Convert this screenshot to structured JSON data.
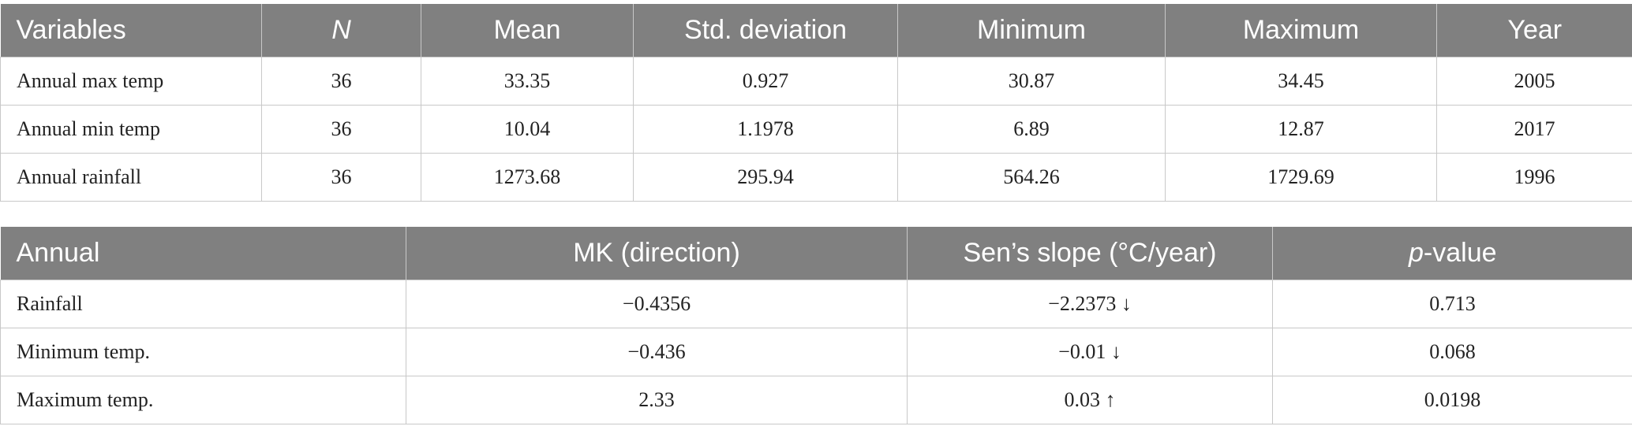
{
  "table1": {
    "header": [
      "Variables",
      "N",
      "Mean",
      "Std. deviation",
      "Minimum",
      "Maximum",
      "Year"
    ],
    "rows": [
      [
        "Annual max temp",
        "36",
        "33.35",
        "0.927",
        "30.87",
        "34.45",
        "2005"
      ],
      [
        "Annual min temp",
        "36",
        "10.04",
        "1.1978",
        "6.89",
        "12.87",
        "2017"
      ],
      [
        "Annual rainfall",
        "36",
        "1273.68",
        "295.94",
        "564.26",
        "1729.69",
        "1996"
      ]
    ]
  },
  "table2": {
    "header": [
      "Annual",
      "MK (direction)",
      "Sen’s slope (°C/year)",
      {
        "italic": "p",
        "rest": "-value"
      }
    ],
    "rows": [
      [
        "Rainfall",
        "−0.4356",
        "−2.2373 ↓",
        "0.713"
      ],
      [
        "Minimum temp.",
        "−0.436",
        "−0.01 ↓",
        "0.068"
      ],
      [
        "Maximum temp.",
        "2.33",
        "0.03 ↑",
        "0.0198"
      ]
    ]
  }
}
